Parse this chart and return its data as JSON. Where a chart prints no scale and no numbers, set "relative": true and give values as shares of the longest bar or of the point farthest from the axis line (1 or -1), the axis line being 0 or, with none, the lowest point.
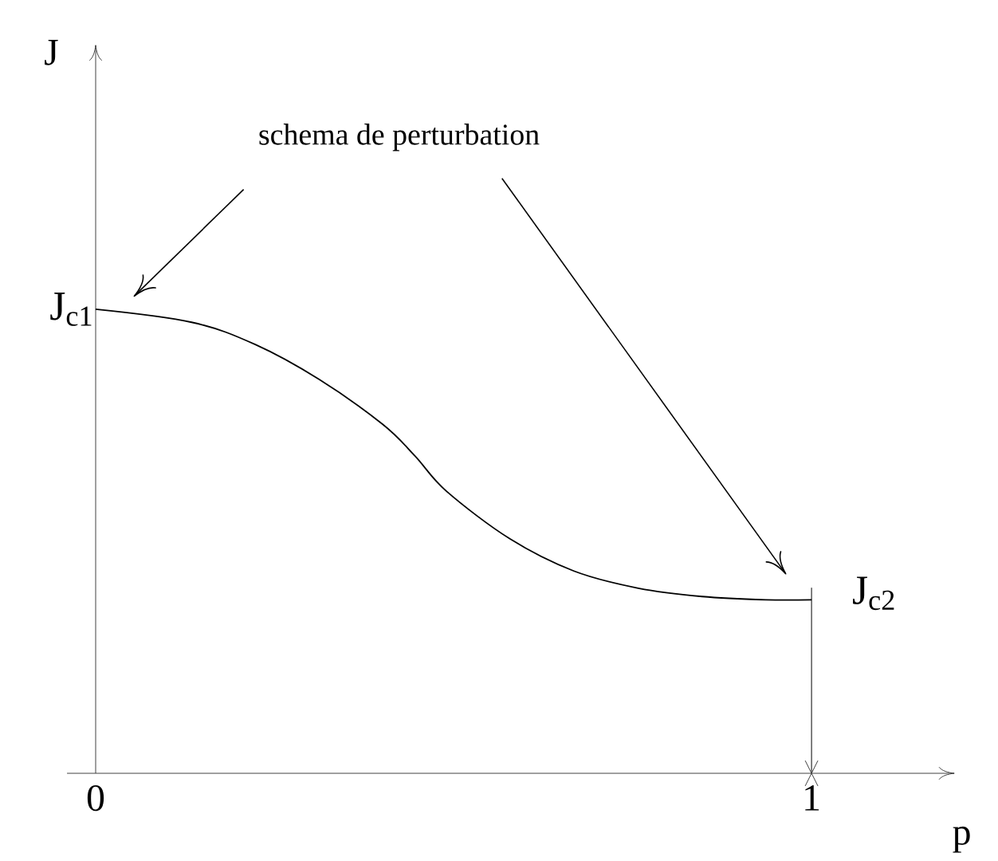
{
  "chart_data": {
    "type": "line",
    "relative": true,
    "xlabel": "p",
    "xlim": [
      -0.04,
      1.2
    ],
    "xticks": [
      0,
      1
    ],
    "line_style": "solid",
    "series": [
      {
        "color": "#000000",
        "x": [
          0,
          0.134,
          0.223,
          0.312,
          0.401,
          0.446,
          0.49,
          0.579,
          0.668,
          0.758,
          0.847,
          0.936,
          1.0
        ],
        "values": [
          1.0,
          0.972,
          0.924,
          0.849,
          0.752,
          0.684,
          0.608,
          0.505,
          0.436,
          0.399,
          0.381,
          0.374,
          0.374
        ]
      },
      {
        "color": "#000000",
        "x": [
          1,
          1
        ],
        "values": [
          0,
          0.4
        ]
      }
    ],
    "annotations": [
      {
        "text": "J$_{c1}$",
        "x": 0,
        "y": 1.0
      },
      {
        "text": "J$_{c2}$",
        "x": 1,
        "y": 0.374
      },
      "schema de perturbation",
      "J"
    ]
  }
}
